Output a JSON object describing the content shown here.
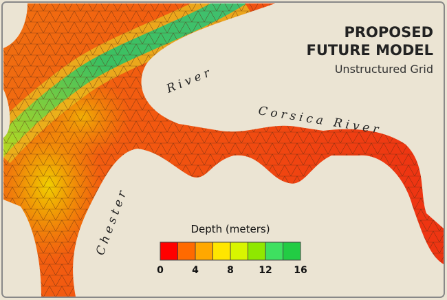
{
  "header": {
    "title_line1": "PROPOSED",
    "title_line2": "FUTURE MODEL",
    "subtitle": "Unstructured Grid"
  },
  "labels": {
    "chester": "Chester",
    "chester_river": "River",
    "corsica": "Corsica River"
  },
  "legend": {
    "title": "Depth (meters)",
    "colors": [
      "#ff0000",
      "#ff6a00",
      "#ffa800",
      "#ffe600",
      "#d8f500",
      "#8fe800",
      "#3ee060",
      "#22cc44"
    ],
    "ticks": [
      0,
      4,
      8,
      12,
      16
    ]
  }
}
